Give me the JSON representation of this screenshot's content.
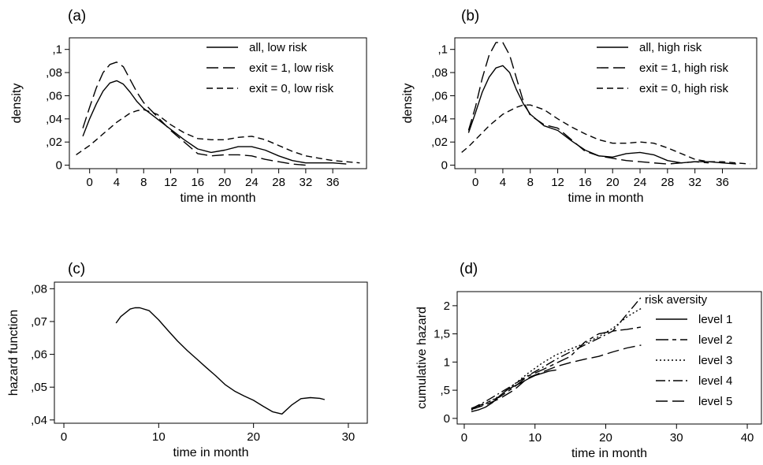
{
  "chart_data": [
    {
      "type": "line",
      "panel_label": "(a)",
      "xlabel": "time in month",
      "ylabel": "density",
      "xlim": [
        -3,
        41
      ],
      "ylim": [
        -0.003,
        0.11
      ],
      "xticks": [
        "0",
        "4",
        "8",
        "12",
        "16",
        "20",
        "24",
        "28",
        "32",
        "36"
      ],
      "xtick_values": [
        0,
        4,
        8,
        12,
        16,
        20,
        24,
        28,
        32,
        36
      ],
      "yticks": [
        "0",
        ",02",
        ",04",
        ",06",
        ",08",
        ",1"
      ],
      "ytick_values": [
        0,
        0.02,
        0.04,
        0.06,
        0.08,
        0.1
      ],
      "legend_position": "top-right",
      "grid": false,
      "series": [
        {
          "name": "all, low risk",
          "dash": "solid",
          "x": [
            -1,
            0,
            1,
            2,
            3,
            4,
            5,
            6,
            7,
            8,
            10,
            12,
            14,
            16,
            18,
            20,
            22,
            24,
            26,
            28,
            30,
            32,
            34,
            36,
            38
          ],
          "y": [
            0.025,
            0.04,
            0.053,
            0.064,
            0.071,
            0.073,
            0.07,
            0.063,
            0.055,
            0.049,
            0.04,
            0.031,
            0.022,
            0.014,
            0.011,
            0.013,
            0.016,
            0.016,
            0.013,
            0.008,
            0.004,
            0.002,
            0.002,
            0.002,
            0.001
          ]
        },
        {
          "name": "exit = 1, low risk",
          "dash": "long",
          "x": [
            -1,
            0,
            1,
            2,
            3,
            4,
            5,
            6,
            7,
            8,
            10,
            12,
            14,
            16,
            18,
            20,
            22,
            24,
            26,
            28,
            30,
            32
          ],
          "y": [
            0.032,
            0.05,
            0.067,
            0.08,
            0.087,
            0.089,
            0.085,
            0.074,
            0.063,
            0.054,
            0.042,
            0.03,
            0.02,
            0.01,
            0.008,
            0.009,
            0.009,
            0.008,
            0.005,
            0.003,
            0.001,
            0.0
          ]
        },
        {
          "name": "exit = 0, low risk",
          "dash": "short",
          "x": [
            -2,
            -1,
            0,
            1,
            2,
            3,
            4,
            5,
            6,
            7,
            8,
            10,
            12,
            14,
            16,
            18,
            20,
            22,
            24,
            26,
            28,
            30,
            32,
            34,
            36,
            38,
            40
          ],
          "y": [
            0.009,
            0.013,
            0.017,
            0.022,
            0.027,
            0.032,
            0.037,
            0.041,
            0.045,
            0.047,
            0.048,
            0.044,
            0.035,
            0.028,
            0.023,
            0.022,
            0.022,
            0.024,
            0.025,
            0.022,
            0.017,
            0.012,
            0.008,
            0.006,
            0.004,
            0.003,
            0.002
          ]
        }
      ]
    },
    {
      "type": "line",
      "panel_label": "(b)",
      "xlabel": "time in month",
      "ylabel": "density",
      "xlim": [
        -3,
        41
      ],
      "ylim": [
        -0.003,
        0.11
      ],
      "xticks": [
        "0",
        "4",
        "8",
        "12",
        "16",
        "20",
        "24",
        "28",
        "32",
        "36"
      ],
      "xtick_values": [
        0,
        4,
        8,
        12,
        16,
        20,
        24,
        28,
        32,
        36
      ],
      "yticks": [
        "0",
        ",02",
        ",04",
        ",06",
        ",08",
        ",1"
      ],
      "ytick_values": [
        0,
        0.02,
        0.04,
        0.06,
        0.08,
        0.1
      ],
      "legend_position": "top-right",
      "grid": false,
      "series": [
        {
          "name": "all, high risk",
          "dash": "solid",
          "x": [
            -1,
            0,
            1,
            2,
            3,
            4,
            5,
            6,
            7,
            8,
            10,
            12,
            14,
            16,
            18,
            20,
            22,
            24,
            26,
            28,
            30,
            32,
            34,
            36,
            38
          ],
          "y": [
            0.028,
            0.045,
            0.063,
            0.076,
            0.084,
            0.086,
            0.08,
            0.065,
            0.053,
            0.044,
            0.034,
            0.03,
            0.021,
            0.013,
            0.008,
            0.007,
            0.01,
            0.011,
            0.009,
            0.004,
            0.002,
            0.003,
            0.003,
            0.002,
            0.001
          ]
        },
        {
          "name": "exit = 1, high risk",
          "dash": "long",
          "x": [
            -1,
            0,
            1,
            2,
            3,
            4,
            5,
            6,
            7,
            8,
            10,
            12,
            14,
            16,
            18,
            20,
            22,
            24,
            26,
            28,
            30,
            32,
            34
          ],
          "y": [
            0.03,
            0.05,
            0.075,
            0.095,
            0.106,
            0.106,
            0.095,
            0.075,
            0.055,
            0.043,
            0.035,
            0.032,
            0.022,
            0.012,
            0.008,
            0.006,
            0.004,
            0.003,
            0.002,
            0.001,
            0.002,
            0.003,
            0.002
          ]
        },
        {
          "name": "exit = 0, high risk",
          "dash": "short",
          "x": [
            -2,
            -1,
            0,
            1,
            2,
            3,
            4,
            5,
            6,
            7,
            8,
            10,
            12,
            14,
            16,
            18,
            20,
            22,
            24,
            26,
            28,
            30,
            32,
            34,
            36,
            38,
            40
          ],
          "y": [
            0.011,
            0.016,
            0.022,
            0.028,
            0.034,
            0.039,
            0.044,
            0.047,
            0.05,
            0.052,
            0.052,
            0.048,
            0.04,
            0.033,
            0.027,
            0.022,
            0.019,
            0.019,
            0.02,
            0.019,
            0.015,
            0.01,
            0.005,
            0.003,
            0.003,
            0.002,
            0.001
          ]
        }
      ]
    },
    {
      "type": "line",
      "panel_label": "(c)",
      "xlabel": "time in month",
      "ylabel": "hazard function",
      "xlim": [
        -1,
        32
      ],
      "ylim": [
        0.039,
        0.082
      ],
      "xticks": [
        "0",
        "10",
        "20",
        "30"
      ],
      "xtick_values": [
        0,
        10,
        20,
        30
      ],
      "yticks": [
        ",04",
        ",05",
        ",06",
        ",07",
        ",08"
      ],
      "ytick_values": [
        0.04,
        0.05,
        0.06,
        0.07,
        0.08
      ],
      "grid": false,
      "series": [
        {
          "dash": "solid",
          "x": [
            5.5,
            6,
            7,
            7.5,
            8,
            9,
            10,
            11,
            12,
            13,
            14,
            15,
            16,
            17,
            18,
            19,
            20,
            21,
            22,
            23,
            24,
            25,
            26,
            27,
            27.5
          ],
          "y": [
            0.0695,
            0.0715,
            0.0738,
            0.0742,
            0.0742,
            0.0733,
            0.0705,
            0.0672,
            0.064,
            0.0612,
            0.0586,
            0.056,
            0.0535,
            0.0508,
            0.0488,
            0.0473,
            0.046,
            0.0442,
            0.0425,
            0.0418,
            0.0445,
            0.0465,
            0.0468,
            0.0466,
            0.0462
          ]
        }
      ]
    },
    {
      "type": "line",
      "panel_label": "(d)",
      "xlabel": "time in month",
      "ylabel": "cumulative hazard",
      "legend_title": "risk aversity",
      "legend_position": "right",
      "xlim": [
        -1,
        42
      ],
      "ylim": [
        -0.1,
        2.25
      ],
      "xticks": [
        "0",
        "10",
        "20",
        "30",
        "40"
      ],
      "xtick_values": [
        0,
        10,
        20,
        30,
        40
      ],
      "yticks": [
        "0",
        ",5",
        "1",
        "1,5",
        "2"
      ],
      "ytick_values": [
        0,
        0.5,
        1,
        1.5,
        2
      ],
      "grid": false,
      "series": [
        {
          "name": "level 1",
          "dash": "solid",
          "x": [
            1,
            2,
            3,
            4,
            5,
            6,
            7,
            8,
            9,
            10,
            11,
            12,
            13
          ],
          "y": [
            0.12,
            0.15,
            0.2,
            0.28,
            0.4,
            0.5,
            0.57,
            0.63,
            0.7,
            0.76,
            0.8,
            0.84,
            0.86
          ]
        },
        {
          "name": "level 2",
          "dash": "longshort",
          "x": [
            1,
            3,
            5,
            7,
            9,
            11,
            13,
            15,
            17,
            19,
            21,
            23,
            25
          ],
          "y": [
            0.18,
            0.27,
            0.38,
            0.55,
            0.75,
            0.86,
            0.98,
            1.1,
            1.35,
            1.5,
            1.55,
            1.58,
            1.62
          ]
        },
        {
          "name": "level 3",
          "dash": "dotted",
          "x": [
            1,
            3,
            5,
            7,
            9,
            11,
            13,
            15,
            17,
            19,
            21,
            22,
            23,
            24,
            25
          ],
          "y": [
            0.15,
            0.26,
            0.4,
            0.6,
            0.8,
            0.98,
            1.13,
            1.23,
            1.33,
            1.45,
            1.6,
            1.7,
            1.8,
            1.88,
            1.95
          ]
        },
        {
          "name": "level 4",
          "dash": "dashdot",
          "x": [
            1,
            3,
            5,
            7,
            9,
            11,
            13,
            15,
            17,
            19,
            21,
            22,
            23,
            24,
            25
          ],
          "y": [
            0.17,
            0.3,
            0.45,
            0.6,
            0.76,
            0.9,
            1.05,
            1.18,
            1.3,
            1.42,
            1.55,
            1.7,
            1.85,
            2.0,
            2.15
          ]
        },
        {
          "name": "level 5",
          "dash": "long",
          "x": [
            1,
            3,
            5,
            7,
            9,
            11,
            13,
            15,
            17,
            19,
            21,
            23,
            25
          ],
          "y": [
            0.16,
            0.24,
            0.35,
            0.5,
            0.72,
            0.82,
            0.92,
            0.99,
            1.05,
            1.1,
            1.18,
            1.25,
            1.3
          ]
        }
      ]
    }
  ]
}
